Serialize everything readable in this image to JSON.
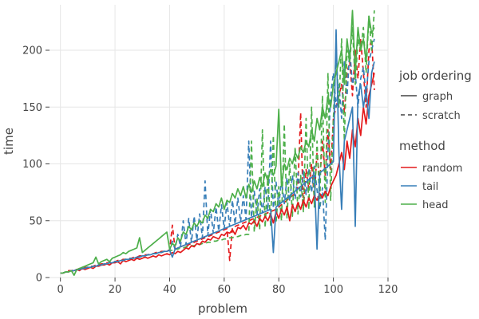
{
  "chart_data": {
    "type": "line",
    "xlabel": "problem",
    "ylabel": "time",
    "xlim": [
      -4,
      120
    ],
    "ylim": [
      0,
      240
    ],
    "xticks": [
      0,
      20,
      40,
      60,
      80,
      100,
      120
    ],
    "yticks": [
      0,
      50,
      100,
      150,
      200
    ],
    "grid": true,
    "legend_position": "right",
    "legends": [
      {
        "title": "job ordering",
        "items": [
          {
            "label": "graph",
            "dash": "solid"
          },
          {
            "label": "scratch",
            "dash": "dashed"
          }
        ]
      },
      {
        "title": "method",
        "items": [
          {
            "label": "random",
            "color": "#e41a1c"
          },
          {
            "label": "tail",
            "color": "#377eb8"
          },
          {
            "label": "head",
            "color": "#4daf4a"
          }
        ]
      }
    ],
    "x": [
      0,
      1,
      2,
      3,
      4,
      5,
      6,
      7,
      8,
      9,
      10,
      11,
      12,
      13,
      14,
      15,
      16,
      17,
      18,
      19,
      20,
      21,
      22,
      23,
      24,
      25,
      26,
      27,
      28,
      29,
      30,
      31,
      32,
      33,
      34,
      35,
      36,
      37,
      38,
      39,
      40,
      41,
      42,
      43,
      44,
      45,
      46,
      47,
      48,
      49,
      50,
      51,
      52,
      53,
      54,
      55,
      56,
      57,
      58,
      59,
      60,
      61,
      62,
      63,
      64,
      65,
      66,
      67,
      68,
      69,
      70,
      71,
      72,
      73,
      74,
      75,
      76,
      77,
      78,
      79,
      80,
      81,
      82,
      83,
      84,
      85,
      86,
      87,
      88,
      89,
      90,
      91,
      92,
      93,
      94,
      95,
      96,
      97,
      98,
      99,
      100,
      101,
      102,
      103,
      104,
      105,
      106,
      107,
      108,
      109,
      110,
      111,
      112,
      113,
      114,
      115
    ],
    "series": [
      {
        "method": "random",
        "ordering": "graph",
        "color": "#e41a1c",
        "dash": "solid",
        "values": [
          4,
          4,
          5,
          5,
          6,
          6,
          7,
          6,
          8,
          7,
          8,
          9,
          8,
          10,
          10,
          11,
          11,
          12,
          11,
          13,
          13,
          14,
          12,
          15,
          14,
          15,
          16,
          15,
          17,
          16,
          17,
          18,
          17,
          18,
          19,
          18,
          20,
          19,
          20,
          21,
          20,
          22,
          21,
          23,
          22,
          24,
          26,
          25,
          28,
          27,
          30,
          29,
          32,
          31,
          34,
          33,
          36,
          35,
          34,
          38,
          37,
          40,
          39,
          42,
          38,
          44,
          43,
          46,
          42,
          48,
          47,
          50,
          45,
          52,
          49,
          54,
          50,
          56,
          48,
          58,
          52,
          60,
          55,
          62,
          50,
          64,
          58,
          66,
          60,
          68,
          62,
          70,
          65,
          72,
          68,
          74,
          70,
          76,
          72,
          80,
          85,
          90,
          100,
          110,
          95,
          120,
          105,
          130,
          115,
          140,
          125,
          150,
          135,
          160,
          170,
          180
        ]
      },
      {
        "method": "random",
        "ordering": "scratch",
        "color": "#e41a1c",
        "dash": "dashed",
        "values": [
          4,
          4,
          5,
          6,
          6,
          7,
          7,
          8,
          8,
          9,
          9,
          10,
          10,
          11,
          11,
          12,
          12,
          13,
          13,
          14,
          14,
          15,
          15,
          16,
          16,
          17,
          17,
          18,
          18,
          19,
          19,
          20,
          20,
          21,
          21,
          22,
          22,
          23,
          23,
          24,
          24,
          46,
          25,
          26,
          27,
          28,
          27,
          29,
          30,
          31,
          32,
          33,
          34,
          35,
          36,
          37,
          38,
          39,
          40,
          41,
          42,
          43,
          15,
          44,
          45,
          46,
          47,
          48,
          49,
          50,
          51,
          52,
          53,
          54,
          55,
          56,
          57,
          58,
          59,
          60,
          62,
          64,
          66,
          68,
          70,
          72,
          74,
          80,
          145,
          60,
          95,
          78,
          100,
          70,
          110,
          85,
          120,
          90,
          130,
          95,
          140,
          150,
          160,
          170,
          145,
          180,
          190,
          160,
          200,
          175,
          210,
          180,
          150,
          200,
          210,
          165
        ]
      },
      {
        "method": "tail",
        "ordering": "graph",
        "color": "#377eb8",
        "dash": "solid",
        "values": [
          4,
          4,
          5,
          5,
          6,
          6,
          7,
          7,
          8,
          8,
          9,
          9,
          10,
          10,
          11,
          11,
          12,
          12,
          13,
          13,
          14,
          14,
          15,
          15,
          16,
          16,
          17,
          17,
          18,
          18,
          19,
          19,
          20,
          20,
          21,
          21,
          22,
          22,
          23,
          23,
          24,
          18,
          25,
          26,
          27,
          28,
          29,
          30,
          31,
          32,
          33,
          34,
          35,
          36,
          37,
          38,
          39,
          40,
          41,
          42,
          43,
          44,
          45,
          46,
          47,
          48,
          49,
          50,
          51,
          52,
          53,
          54,
          55,
          56,
          57,
          58,
          59,
          60,
          22,
          62,
          64,
          66,
          68,
          70,
          72,
          74,
          76,
          78,
          80,
          82,
          84,
          86,
          88,
          90,
          25,
          92,
          94,
          96,
          98,
          100,
          102,
          218,
          110,
          60,
          120,
          130,
          140,
          150,
          45,
          160,
          170,
          150,
          165,
          140,
          180,
          190
        ]
      },
      {
        "method": "tail",
        "ordering": "scratch",
        "color": "#377eb8",
        "dash": "dashed",
        "values": [
          4,
          4,
          5,
          5,
          6,
          6,
          7,
          7,
          8,
          8,
          9,
          9,
          10,
          10,
          11,
          11,
          12,
          12,
          13,
          13,
          14,
          14,
          15,
          15,
          16,
          16,
          17,
          17,
          18,
          18,
          19,
          19,
          20,
          20,
          21,
          21,
          22,
          22,
          23,
          23,
          24,
          32,
          25,
          38,
          27,
          50,
          29,
          52,
          31,
          54,
          33,
          56,
          35,
          85,
          37,
          60,
          39,
          62,
          41,
          64,
          43,
          66,
          45,
          68,
          47,
          70,
          49,
          72,
          51,
          120,
          53,
          76,
          55,
          78,
          57,
          80,
          59,
          120,
          61,
          84,
          63,
          86,
          65,
          88,
          67,
          90,
          69,
          92,
          71,
          94,
          73,
          96,
          75,
          98,
          77,
          60,
          79,
          33,
          110,
          160,
          180,
          150,
          170,
          140,
          190,
          160,
          200,
          170,
          180,
          150,
          175,
          185,
          160,
          190,
          200,
          210
        ]
      },
      {
        "method": "head",
        "ordering": "graph",
        "color": "#4daf4a",
        "dash": "solid",
        "values": [
          4,
          4,
          5,
          5,
          6,
          2,
          7,
          8,
          9,
          10,
          11,
          12,
          13,
          18,
          12,
          14,
          15,
          16,
          14,
          17,
          18,
          19,
          20,
          22,
          21,
          23,
          24,
          25,
          26,
          35,
          22,
          24,
          26,
          28,
          30,
          32,
          34,
          36,
          38,
          40,
          25,
          30,
          28,
          35,
          32,
          40,
          38,
          45,
          42,
          48,
          45,
          50,
          48,
          55,
          52,
          60,
          58,
          65,
          62,
          70,
          60,
          68,
          66,
          74,
          70,
          78,
          72,
          80,
          70,
          82,
          75,
          85,
          78,
          88,
          80,
          92,
          85,
          95,
          90,
          98,
          148,
          80,
          100,
          95,
          105,
          100,
          110,
          105,
          115,
          110,
          120,
          115,
          130,
          120,
          140,
          130,
          150,
          140,
          160,
          150,
          170,
          180,
          190,
          200,
          170,
          210,
          190,
          235,
          180,
          220,
          200,
          210,
          190,
          230,
          215,
          220
        ]
      },
      {
        "method": "head",
        "ordering": "scratch",
        "color": "#4daf4a",
        "dash": "dashed",
        "values": [
          4,
          4,
          5,
          5,
          6,
          6,
          7,
          7,
          8,
          8,
          9,
          9,
          10,
          10,
          11,
          11,
          12,
          12,
          13,
          13,
          14,
          14,
          15,
          15,
          16,
          16,
          17,
          17,
          18,
          18,
          19,
          19,
          20,
          20,
          21,
          21,
          22,
          22,
          23,
          23,
          24,
          24,
          25,
          25,
          26,
          26,
          27,
          27,
          28,
          28,
          29,
          29,
          30,
          30,
          31,
          31,
          32,
          32,
          33,
          33,
          34,
          34,
          35,
          35,
          36,
          36,
          37,
          37,
          38,
          38,
          120,
          40,
          70,
          42,
          130,
          44,
          90,
          46,
          125,
          48,
          80,
          50,
          135,
          52,
          100,
          54,
          115,
          56,
          90,
          58,
          140,
          60,
          150,
          62,
          120,
          64,
          160,
          66,
          180,
          68,
          140,
          200,
          150,
          210,
          120,
          200,
          190,
          220,
          170,
          210,
          200,
          220,
          180,
          230,
          200,
          235
        ]
      }
    ]
  }
}
